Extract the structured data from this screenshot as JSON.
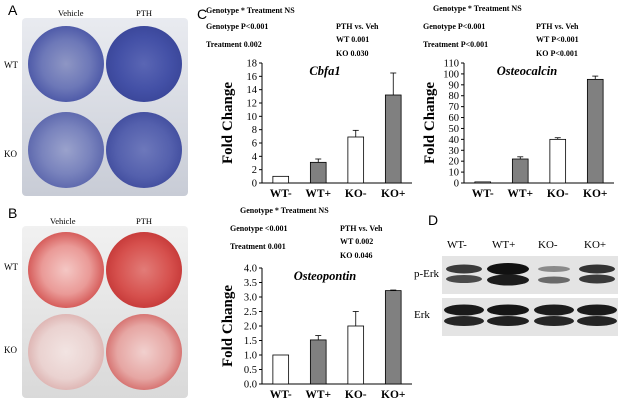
{
  "panels": {
    "A": {
      "label": "A",
      "col_labels": [
        "Vehicle",
        "PTH"
      ],
      "row_labels": [
        "WT",
        "KO"
      ]
    },
    "B": {
      "label": "B",
      "col_labels": [
        "Vehicle",
        "PTH"
      ],
      "row_labels": [
        "WT",
        "KO"
      ]
    },
    "C": {
      "label": "C",
      "cbfa1_stats": {
        "interaction": "Genotype * Treatment  NS",
        "genotype": "Genotype   P<0.001",
        "treatment": "Treatment  0.002",
        "pth_vs_veh": "PTH vs. Veh",
        "wt": "WT     0.001",
        "ko": "KO     0.030"
      },
      "osteocalcin_stats": {
        "interaction": "Genotype * Treatment  NS",
        "genotype": "Genotype   P<0.001",
        "treatment": "Treatment  P<0.001",
        "pth_vs_veh": "PTH vs. Veh",
        "wt": "WT     P<0.001",
        "ko": "KO     P<0.001"
      },
      "osteopontin_stats": {
        "interaction": "Genotype * Treatment  NS",
        "genotype": "Genotype   <0.001",
        "treatment": "Treatment   0.001",
        "pth_vs_veh": "PTH vs. Veh",
        "wt": "WT     0.002",
        "ko": "KO     0.046"
      }
    },
    "D": {
      "label": "D",
      "lane_labels": [
        "WT-",
        "WT+",
        "KO-",
        "KO+"
      ],
      "row_labels": [
        "p-Erk",
        "Erk"
      ]
    }
  },
  "chart_data": [
    {
      "type": "bar",
      "title": "Cbfa1",
      "ylabel": "Fold Change",
      "categories": [
        "WT-",
        "WT+",
        "KO-",
        "KO+"
      ],
      "values": [
        1.0,
        3.1,
        6.9,
        13.2
      ],
      "errors": [
        0.0,
        0.5,
        1.0,
        3.3
      ],
      "bar_colors": [
        "#ffffff",
        "#808080",
        "#ffffff",
        "#808080"
      ],
      "ylim": [
        0,
        18
      ],
      "yticks": [
        0,
        2,
        4,
        6,
        8,
        10,
        12,
        14,
        16,
        18
      ]
    },
    {
      "type": "bar",
      "title": "Osteocalcin",
      "ylabel": "Fold Change",
      "categories": [
        "WT-",
        "WT+",
        "KO-",
        "KO+"
      ],
      "values": [
        1.0,
        22.0,
        40.0,
        95.0
      ],
      "errors": [
        0.0,
        2.0,
        1.5,
        3.0
      ],
      "bar_colors": [
        "#ffffff",
        "#808080",
        "#ffffff",
        "#808080"
      ],
      "ylim": [
        0,
        110
      ],
      "yticks": [
        0,
        10,
        20,
        30,
        40,
        50,
        60,
        70,
        80,
        90,
        100,
        110
      ]
    },
    {
      "type": "bar",
      "title": "Osteopontin",
      "ylabel": "Fold Change",
      "categories": [
        "WT-",
        "WT+",
        "KO-",
        "KO+"
      ],
      "values": [
        1.0,
        1.52,
        2.0,
        3.22
      ],
      "errors": [
        0.0,
        0.15,
        0.5,
        0.02
      ],
      "bar_colors": [
        "#ffffff",
        "#808080",
        "#ffffff",
        "#808080"
      ],
      "ylim": [
        0,
        4.0
      ],
      "yticks": [
        0.0,
        0.5,
        1.0,
        1.5,
        2.0,
        2.5,
        3.0,
        3.5,
        4.0
      ]
    }
  ]
}
